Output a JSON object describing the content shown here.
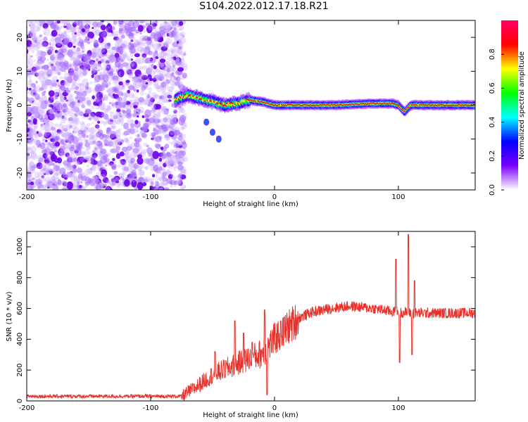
{
  "title": "S104.2022.012.17.18.R21",
  "chart_data": [
    {
      "type": "heatmap",
      "xlabel": "Height of straight line (km)",
      "ylabel": "Frequency (Hz)",
      "xlim": [
        -200,
        162
      ],
      "ylim": [
        -25,
        25
      ],
      "x_ticks": [
        -200,
        -100,
        0,
        100
      ],
      "y_ticks": [
        -20,
        -10,
        0,
        10,
        20
      ],
      "colorbar": {
        "label": "Normalized spectral amplitude",
        "range": [
          0,
          1
        ],
        "ticks": [
          0.0,
          0.2,
          0.4,
          0.6,
          0.8
        ],
        "tick_labels": [
          "0.0",
          "0.2",
          "0.4",
          "0.6",
          "0.8"
        ],
        "colors": [
          "#ffffff",
          "#7a00ff",
          "#0000ff",
          "#00ffff",
          "#00ff00",
          "#ffff00",
          "#ff0000",
          "#ff0066"
        ]
      },
      "noise_region": {
        "x_range": [
          -200,
          -75
        ],
        "amplitude": 0.3
      },
      "ridge": [
        {
          "x": -80,
          "f": 1.5
        },
        {
          "x": -70,
          "f": 3
        },
        {
          "x": -60,
          "f": 2
        },
        {
          "x": -50,
          "f": 1
        },
        {
          "x": -40,
          "f": 0
        },
        {
          "x": -30,
          "f": 0.5
        },
        {
          "x": -20,
          "f": 1.5
        },
        {
          "x": -10,
          "f": 1
        },
        {
          "x": 0,
          "f": 0
        },
        {
          "x": 20,
          "f": 0
        },
        {
          "x": 50,
          "f": 0
        },
        {
          "x": 80,
          "f": 0.5
        },
        {
          "x": 95,
          "f": 0.5
        },
        {
          "x": 100,
          "f": 0
        },
        {
          "x": 105,
          "f": -2
        },
        {
          "x": 110,
          "f": 0
        },
        {
          "x": 162,
          "f": 0
        }
      ],
      "side_branch": [
        {
          "x": -55,
          "f": -5
        },
        {
          "x": -50,
          "f": -8
        },
        {
          "x": -45,
          "f": -10
        }
      ]
    },
    {
      "type": "line",
      "xlabel": "Height of straight line (km)",
      "ylabel": "SNR (10 * v/v)",
      "xlim": [
        -200,
        162
      ],
      "ylim": [
        0,
        1100
      ],
      "x_ticks": [
        -200,
        -100,
        0,
        100
      ],
      "y_ticks": [
        0,
        200,
        400,
        600,
        800,
        1000
      ],
      "color": "#e8312a",
      "trend": [
        {
          "x": -200,
          "y": 30
        },
        {
          "x": -75,
          "y": 30
        },
        {
          "x": -65,
          "y": 80
        },
        {
          "x": -50,
          "y": 170
        },
        {
          "x": -30,
          "y": 240
        },
        {
          "x": -10,
          "y": 310
        },
        {
          "x": 0,
          "y": 400
        },
        {
          "x": 10,
          "y": 470
        },
        {
          "x": 20,
          "y": 540
        },
        {
          "x": 30,
          "y": 575
        },
        {
          "x": 45,
          "y": 600
        },
        {
          "x": 60,
          "y": 615
        },
        {
          "x": 80,
          "y": 600
        },
        {
          "x": 95,
          "y": 580
        },
        {
          "x": 110,
          "y": 570
        },
        {
          "x": 130,
          "y": 570
        },
        {
          "x": 162,
          "y": 570
        }
      ],
      "spikes": [
        {
          "x": -48,
          "y": 320
        },
        {
          "x": -32,
          "y": 520
        },
        {
          "x": -25,
          "y": 440
        },
        {
          "x": -18,
          "y": 380
        },
        {
          "x": -8,
          "y": 590
        },
        {
          "x": -6,
          "y": 40
        },
        {
          "x": 5,
          "y": 520
        },
        {
          "x": 98,
          "y": 920
        },
        {
          "x": 101,
          "y": 250
        },
        {
          "x": 108,
          "y": 1080
        },
        {
          "x": 111,
          "y": 300
        },
        {
          "x": 113,
          "y": 780
        }
      ]
    }
  ]
}
